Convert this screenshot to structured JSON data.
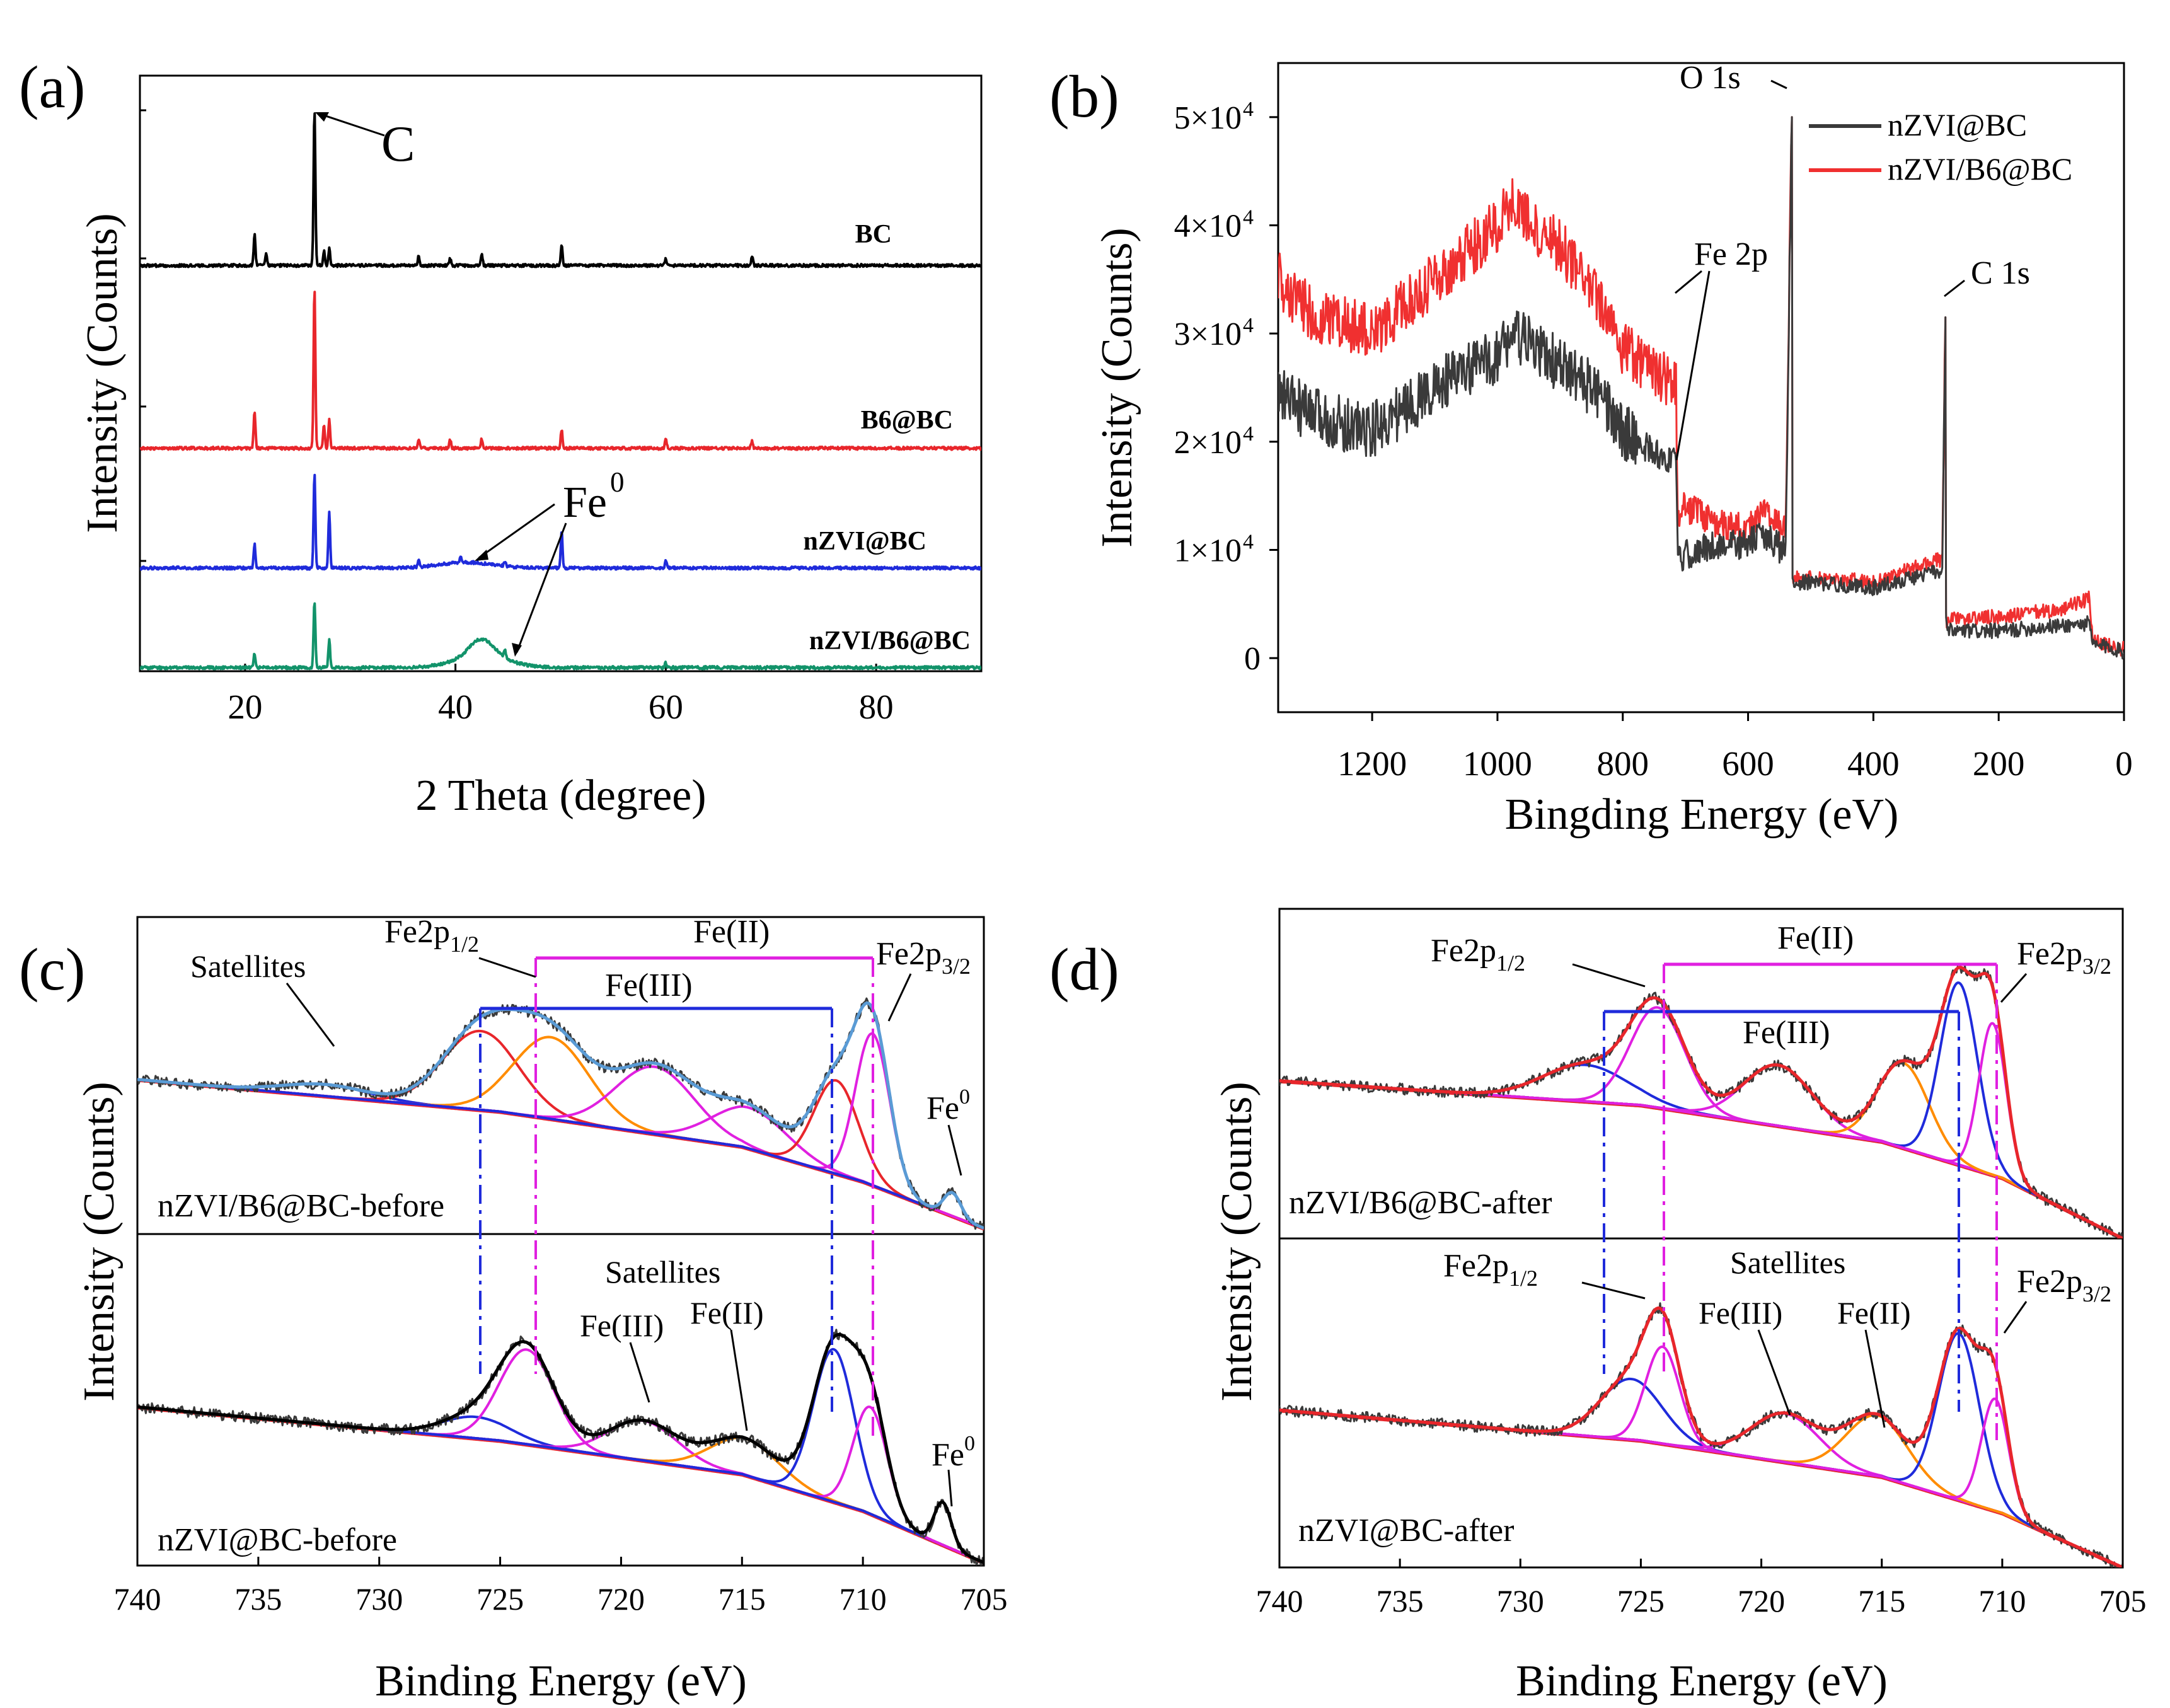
{
  "figure": {
    "panels": [
      {
        "label": "(a)"
      },
      {
        "label": "(b)"
      },
      {
        "label": "(c)"
      },
      {
        "label": "(d)"
      }
    ]
  },
  "chart_data": [
    {
      "type": "line",
      "panel": "(a)",
      "title": "",
      "xlabel": "2 Theta (degree)",
      "ylabel": "Intensity (Counts)",
      "xlim": [
        10,
        90
      ],
      "xticks": [
        20,
        40,
        60,
        80
      ],
      "yticks_labeled": false,
      "series": [
        {
          "name": "BC",
          "color": "#000000",
          "peaks": [
            [
              20.9,
              0.65
            ],
            [
              22.0,
              0.25
            ],
            [
              26.6,
              3.3
            ],
            [
              27.5,
              0.3
            ],
            [
              28.0,
              0.35
            ],
            [
              36.5,
              0.2
            ],
            [
              39.5,
              0.15
            ],
            [
              42.5,
              0.25
            ],
            [
              50.1,
              0.45
            ],
            [
              60.0,
              0.15
            ],
            [
              68.2,
              0.2
            ]
          ]
        },
        {
          "name": "B6@BC",
          "color": "#e8262b",
          "peaks": [
            [
              20.9,
              0.8
            ],
            [
              26.6,
              3.4
            ],
            [
              27.5,
              0.5
            ],
            [
              28.0,
              0.6
            ],
            [
              36.5,
              0.2
            ],
            [
              39.5,
              0.18
            ],
            [
              42.5,
              0.2
            ],
            [
              50.1,
              0.4
            ],
            [
              60.0,
              0.2
            ],
            [
              68.2,
              0.15
            ]
          ]
        },
        {
          "name": "nZVI@BC",
          "color": "#1f2bdb",
          "peaks": [
            [
              20.9,
              0.5
            ],
            [
              26.6,
              2.0
            ],
            [
              28.0,
              1.2
            ],
            [
              36.5,
              0.15
            ],
            [
              40.5,
              0.15
            ],
            [
              44.7,
              0.1
            ],
            [
              50.1,
              0.8
            ],
            [
              60.0,
              0.15
            ]
          ]
        },
        {
          "name": "nZVI/B6@BC",
          "color": "#12936a",
          "peaks": [
            [
              20.9,
              0.3
            ],
            [
              26.6,
              1.4
            ],
            [
              28.0,
              0.6
            ],
            [
              42.5,
              0.35
            ],
            [
              44.7,
              0.15
            ],
            [
              60.0,
              0.1
            ]
          ]
        }
      ],
      "annotations": [
        "C",
        "Fe",
        "0"
      ]
    },
    {
      "type": "line",
      "panel": "(b)",
      "xlabel": "Bingding Energy (eV)",
      "ylabel": "Intensity (Counts)",
      "xlim": [
        1350,
        0
      ],
      "ylim": [
        -5000,
        55000
      ],
      "xticks": [
        1200,
        1000,
        800,
        600,
        400,
        200,
        0
      ],
      "yticks": [
        0,
        10000,
        20000,
        30000,
        40000,
        50000
      ],
      "ytick_labels": [
        "0",
        "1×10",
        "2×10",
        "3×10",
        "4×10",
        "5×10"
      ],
      "ytick_exponent": "4",
      "series": [
        {
          "name": "nZVI@BC",
          "color": "#3a3a3a",
          "x": [
            1350,
            1300,
            1200,
            1100,
            1000,
            975,
            950,
            900,
            850,
            800,
            750,
            715,
            712,
            700,
            650,
            600,
            580,
            545,
            540,
            530,
            529,
            500,
            400,
            300,
            290,
            285,
            284,
            283,
            200,
            100,
            55,
            50,
            20,
            0
          ],
          "y": [
            24500,
            22500,
            21000,
            25000,
            28000,
            30000,
            29000,
            27000,
            25000,
            21000,
            19000,
            18000,
            9000,
            9500,
            10500,
            10500,
            11500,
            10000,
            10000,
            50000,
            7000,
            7000,
            6500,
            8000,
            8000,
            31500,
            3500,
            2500,
            2500,
            3000,
            3200,
            1200,
            1000,
            500
          ]
        },
        {
          "name": "nZVI/B6@BC",
          "color": "#f03030",
          "x": [
            1350,
            1300,
            1200,
            1100,
            1000,
            975,
            950,
            900,
            850,
            800,
            750,
            715,
            712,
            700,
            650,
            600,
            580,
            545,
            540,
            530,
            529,
            500,
            400,
            300,
            290,
            285,
            284,
            283,
            200,
            100,
            55,
            50,
            20,
            0
          ],
          "y": [
            35000,
            32000,
            30000,
            35000,
            40000,
            43000,
            40000,
            38000,
            34000,
            28500,
            26500,
            25000,
            13500,
            14000,
            12500,
            12000,
            13500,
            12000,
            12000,
            50000,
            7500,
            7500,
            7000,
            9000,
            9000,
            31500,
            4500,
            3500,
            3800,
            4500,
            5500,
            1500,
            1200,
            800
          ]
        }
      ],
      "annotations": [
        "O 1s",
        "Fe 2p",
        "C 1s"
      ]
    },
    {
      "type": "line",
      "panel": "(c)",
      "xlabel": "Binding Energy (eV)",
      "ylabel": "Intensity (Counts)",
      "xlim": [
        740,
        705
      ],
      "xticks": [
        740,
        735,
        730,
        725,
        720,
        715,
        710,
        705
      ],
      "subplots": [
        {
          "name": "nZVI/B6@BC-before",
          "baseline": [
            [
              740,
              0.53
            ],
            [
              725,
              0.42
            ],
            [
              715,
              0.3
            ],
            [
              710,
              0.18
            ],
            [
              705,
              0.02
            ]
          ],
          "components": [
            {
              "color": "#1f2bdb",
              "center": 732.2,
              "height": 0.04,
              "width": 2.5
            },
            {
              "color": "#e8262b",
              "center": 725.8,
              "height": 0.27,
              "width": 2.2
            },
            {
              "color": "#ff8c00",
              "center": 722.9,
              "height": 0.28,
              "width": 2.2
            },
            {
              "color": "#e020e0",
              "center": 718.6,
              "height": 0.23,
              "width": 2.3
            },
            {
              "color": "#e020e0",
              "center": 714.7,
              "height": 0.14,
              "width": 2.2
            },
            {
              "color": "#e8262b",
              "center": 711.1,
              "height": 0.32,
              "width": 1.3
            },
            {
              "color": "#e020e0",
              "center": 709.6,
              "height": 0.52,
              "width": 1.0
            },
            {
              "color": "#1f2bdb",
              "center": 706.3,
              "height": 0.08,
              "width": 0.5
            }
          ],
          "envelope_color": "#5a9bd5",
          "data_color": "#3a3a3a"
        },
        {
          "name": "nZVI@BC-before",
          "baseline": [
            [
              740,
              0.52
            ],
            [
              725,
              0.41
            ],
            [
              715,
              0.3
            ],
            [
              710,
              0.18
            ],
            [
              705,
              0.01
            ]
          ],
          "components": [
            {
              "color": "#1f2bdb",
              "center": 726.0,
              "height": 0.07,
              "width": 2.0
            },
            {
              "color": "#e020e0",
              "center": 723.9,
              "height": 0.31,
              "width": 1.6
            },
            {
              "color": "#e020e0",
              "center": 719.1,
              "height": 0.13,
              "width": 2.0
            },
            {
              "color": "#ff8c00",
              "center": 714.9,
              "height": 0.12,
              "width": 2.0
            },
            {
              "color": "#1f2bdb",
              "center": 711.2,
              "height": 0.5,
              "width": 1.2
            },
            {
              "color": "#e020e0",
              "center": 709.7,
              "height": 0.35,
              "width": 1.0
            },
            {
              "color": "#1f2bdb",
              "center": 706.7,
              "height": 0.14,
              "width": 0.5
            }
          ],
          "envelope_color": "#000000",
          "data_color": "#3a3a3a"
        }
      ],
      "labels": [
        "Satellites",
        "Fe2p",
        "1/2",
        "Fe(II)",
        "Fe(III)",
        "Fe2p",
        "3/2",
        "Fe",
        "0",
        "nZVI/B6@BC-before",
        "Satellites",
        "Fe(III)",
        "Fe(II)",
        "Fe",
        "0",
        "nZVI@BC-before"
      ]
    },
    {
      "type": "line",
      "panel": "(d)",
      "xlabel": "Binding Energy (eV)",
      "ylabel": "Intensity (Counts)",
      "xlim": [
        740,
        705
      ],
      "xticks": [
        740,
        735,
        730,
        725,
        720,
        715,
        710,
        705
      ],
      "subplots": [
        {
          "name": "nZVI/B6@BC-after",
          "baseline": [
            [
              740,
              0.52
            ],
            [
              725,
              0.44
            ],
            [
              715,
              0.32
            ],
            [
              710,
              0.2
            ],
            [
              705,
              0.0
            ]
          ],
          "components": [
            {
              "color": "#1f2bdb",
              "center": 727.3,
              "height": 0.12,
              "width": 2.5
            },
            {
              "color": "#e020e0",
              "center": 724.3,
              "height": 0.33,
              "width": 1.6
            },
            {
              "color": "#e020e0",
              "center": 719.3,
              "height": 0.2,
              "width": 2.0
            },
            {
              "color": "#ff8c00",
              "center": 714.1,
              "height": 0.28,
              "width": 1.5
            },
            {
              "color": "#1f2bdb",
              "center": 711.8,
              "height": 0.6,
              "width": 1.1
            },
            {
              "color": "#e020e0",
              "center": 710.4,
              "height": 0.5,
              "width": 0.8
            }
          ],
          "envelope_color": "#e8262b",
          "data_color": "#3a3a3a"
        },
        {
          "name": "nZVI@BC-after",
          "baseline": [
            [
              740,
              0.52
            ],
            [
              725,
              0.42
            ],
            [
              715,
              0.3
            ],
            [
              710,
              0.18
            ],
            [
              705,
              0.0
            ]
          ],
          "components": [
            {
              "color": "#1f2bdb",
              "center": 725.4,
              "height": 0.2,
              "width": 1.8
            },
            {
              "color": "#e020e0",
              "center": 724.1,
              "height": 0.32,
              "width": 1.0
            },
            {
              "color": "#e020e0",
              "center": 719.0,
              "height": 0.16,
              "width": 2.0
            },
            {
              "color": "#ff8c00",
              "center": 715.2,
              "height": 0.2,
              "width": 1.8
            },
            {
              "color": "#1f2bdb",
              "center": 711.8,
              "height": 0.55,
              "width": 1.2
            },
            {
              "color": "#e020e0",
              "center": 710.3,
              "height": 0.37,
              "width": 0.8
            }
          ],
          "envelope_color": "#e8262b",
          "data_color": "#3a3a3a"
        }
      ],
      "labels": [
        "Fe2p",
        "1/2",
        "Fe(II)",
        "Fe(III)",
        "Fe2p",
        "3/2",
        "nZVI/B6@BC-after",
        "Fe2p",
        "1/2",
        "Satellites",
        "Fe(III)",
        "Fe(II)",
        "Fe2p",
        "3/2",
        "nZVI@BC-after"
      ]
    }
  ]
}
